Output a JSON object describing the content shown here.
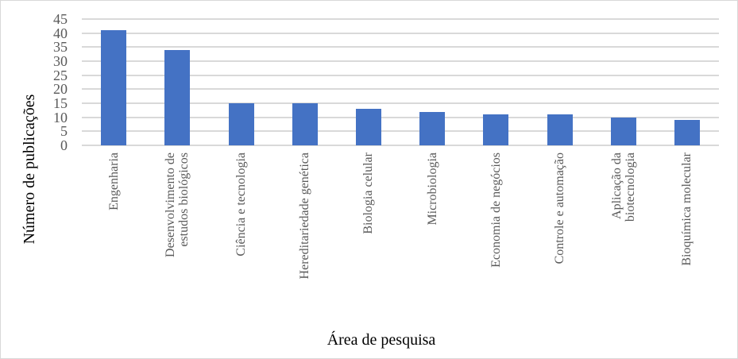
{
  "chart_data": {
    "type": "bar",
    "title": "",
    "xlabel": "Área de pesquisa",
    "ylabel": "Número de publicações",
    "categories": [
      "Engenharia",
      "Desenvolvimento de estudos biológicos",
      "Ciência e tecnologia",
      "Hereditariedade genética",
      "Biologia celular",
      "Microbiologia",
      "Economia de negócios",
      "Controle e automação",
      "Aplicação da biotecnologia",
      "Bioquímica molecular"
    ],
    "category_lines": [
      [
        "Engenharia"
      ],
      [
        "Desenvolvimento de",
        "estudos biológicos"
      ],
      [
        "Ciência e tecnologia"
      ],
      [
        "Hereditariedade genética"
      ],
      [
        "Biologia celular"
      ],
      [
        "Microbiologia"
      ],
      [
        "Economia de negócios"
      ],
      [
        "Controle e automação"
      ],
      [
        "Aplicação da",
        "biotecnologia"
      ],
      [
        "Bioquímica molecular"
      ]
    ],
    "values": [
      41,
      34,
      15,
      15,
      13,
      12,
      11,
      11,
      10,
      9
    ],
    "ylim": [
      0,
      45
    ],
    "yticks": [
      "0",
      "5",
      "10",
      "15",
      "20",
      "25",
      "30",
      "35",
      "40",
      "45"
    ],
    "grid": true,
    "legend": null,
    "bar_color": "#4472c4",
    "grid_color": "#d9d9d9"
  }
}
